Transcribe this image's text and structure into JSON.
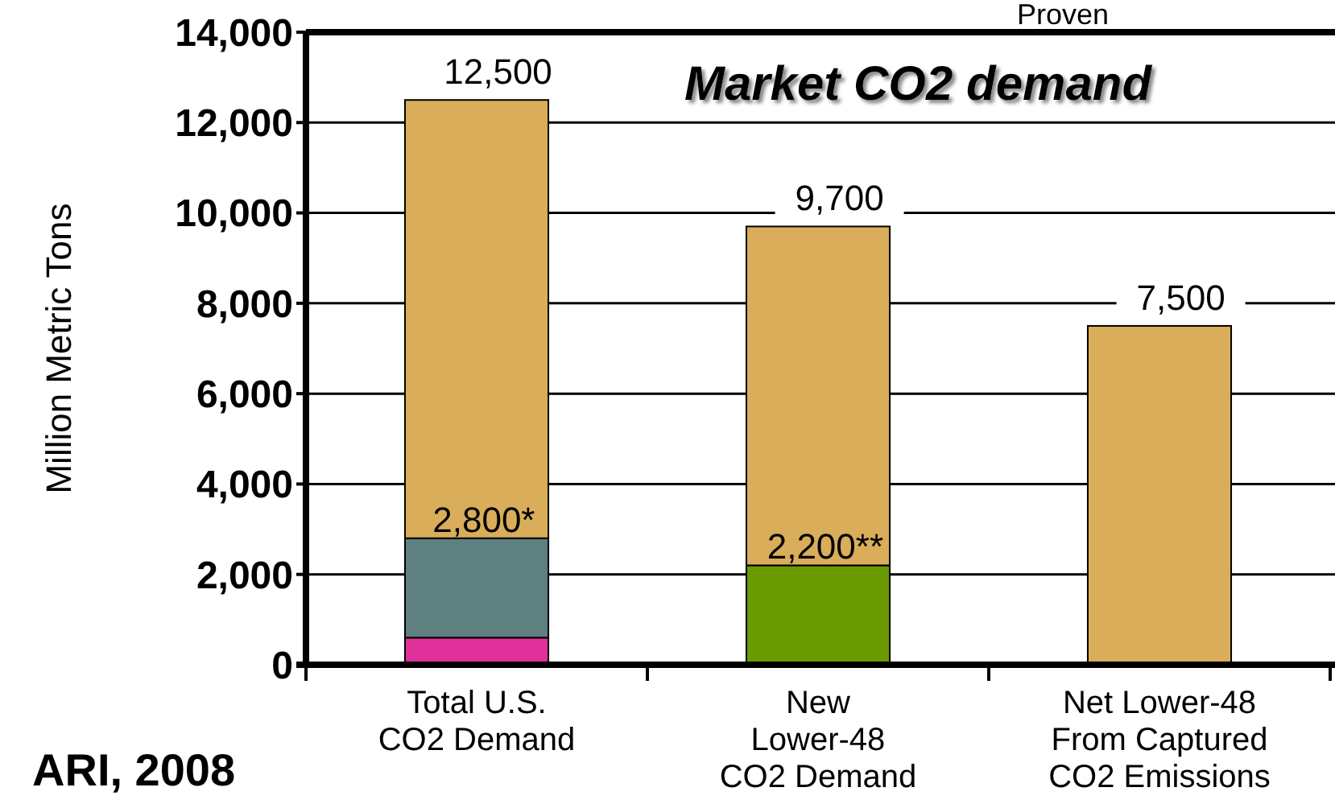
{
  "chart_data": {
    "type": "bar",
    "title": "Market CO2 demand",
    "ylabel": "Million Metric Tons",
    "categories": [
      "Total U.S.\nCO2 Demand",
      "New\nLower-48\nCO2 Demand",
      "Net Lower-48\nFrom Captured\nCO2 Emissions"
    ],
    "stacked": true,
    "series": [
      {
        "color": "#e0309a",
        "values": [
          600,
          null,
          null
        ]
      },
      {
        "color": "#5f8080",
        "values": [
          2200,
          null,
          null
        ]
      },
      {
        "color": "#6b9a00",
        "values": [
          null,
          2200,
          null
        ]
      },
      {
        "color": "#d9ad5a",
        "values": [
          9700,
          7500,
          7500
        ]
      }
    ],
    "totals": [
      "12,500",
      "9,700",
      "7,500"
    ],
    "annotations": [
      {
        "text": "2,800*",
        "x": "Total U.S.\nCO2 Demand",
        "y": 2800
      },
      {
        "text": "2,200**",
        "x": "New\nLower-48\nCO2 Demand",
        "y": 2200
      },
      "Proven",
      "ARI, 2008"
    ],
    "ylim": [
      0,
      14000
    ],
    "yticks": [
      {
        "value": 0,
        "label": "0"
      },
      {
        "value": 2000,
        "label": "2,000"
      },
      {
        "value": 4000,
        "label": "4,000"
      },
      {
        "value": 6000,
        "label": "6,000"
      },
      {
        "value": 8000,
        "label": "8,000"
      },
      {
        "value": 10000,
        "label": "10,000"
      },
      {
        "value": 12000,
        "label": "12,000"
      },
      {
        "value": 14000,
        "label": "14,000"
      }
    ],
    "grid": "y"
  }
}
